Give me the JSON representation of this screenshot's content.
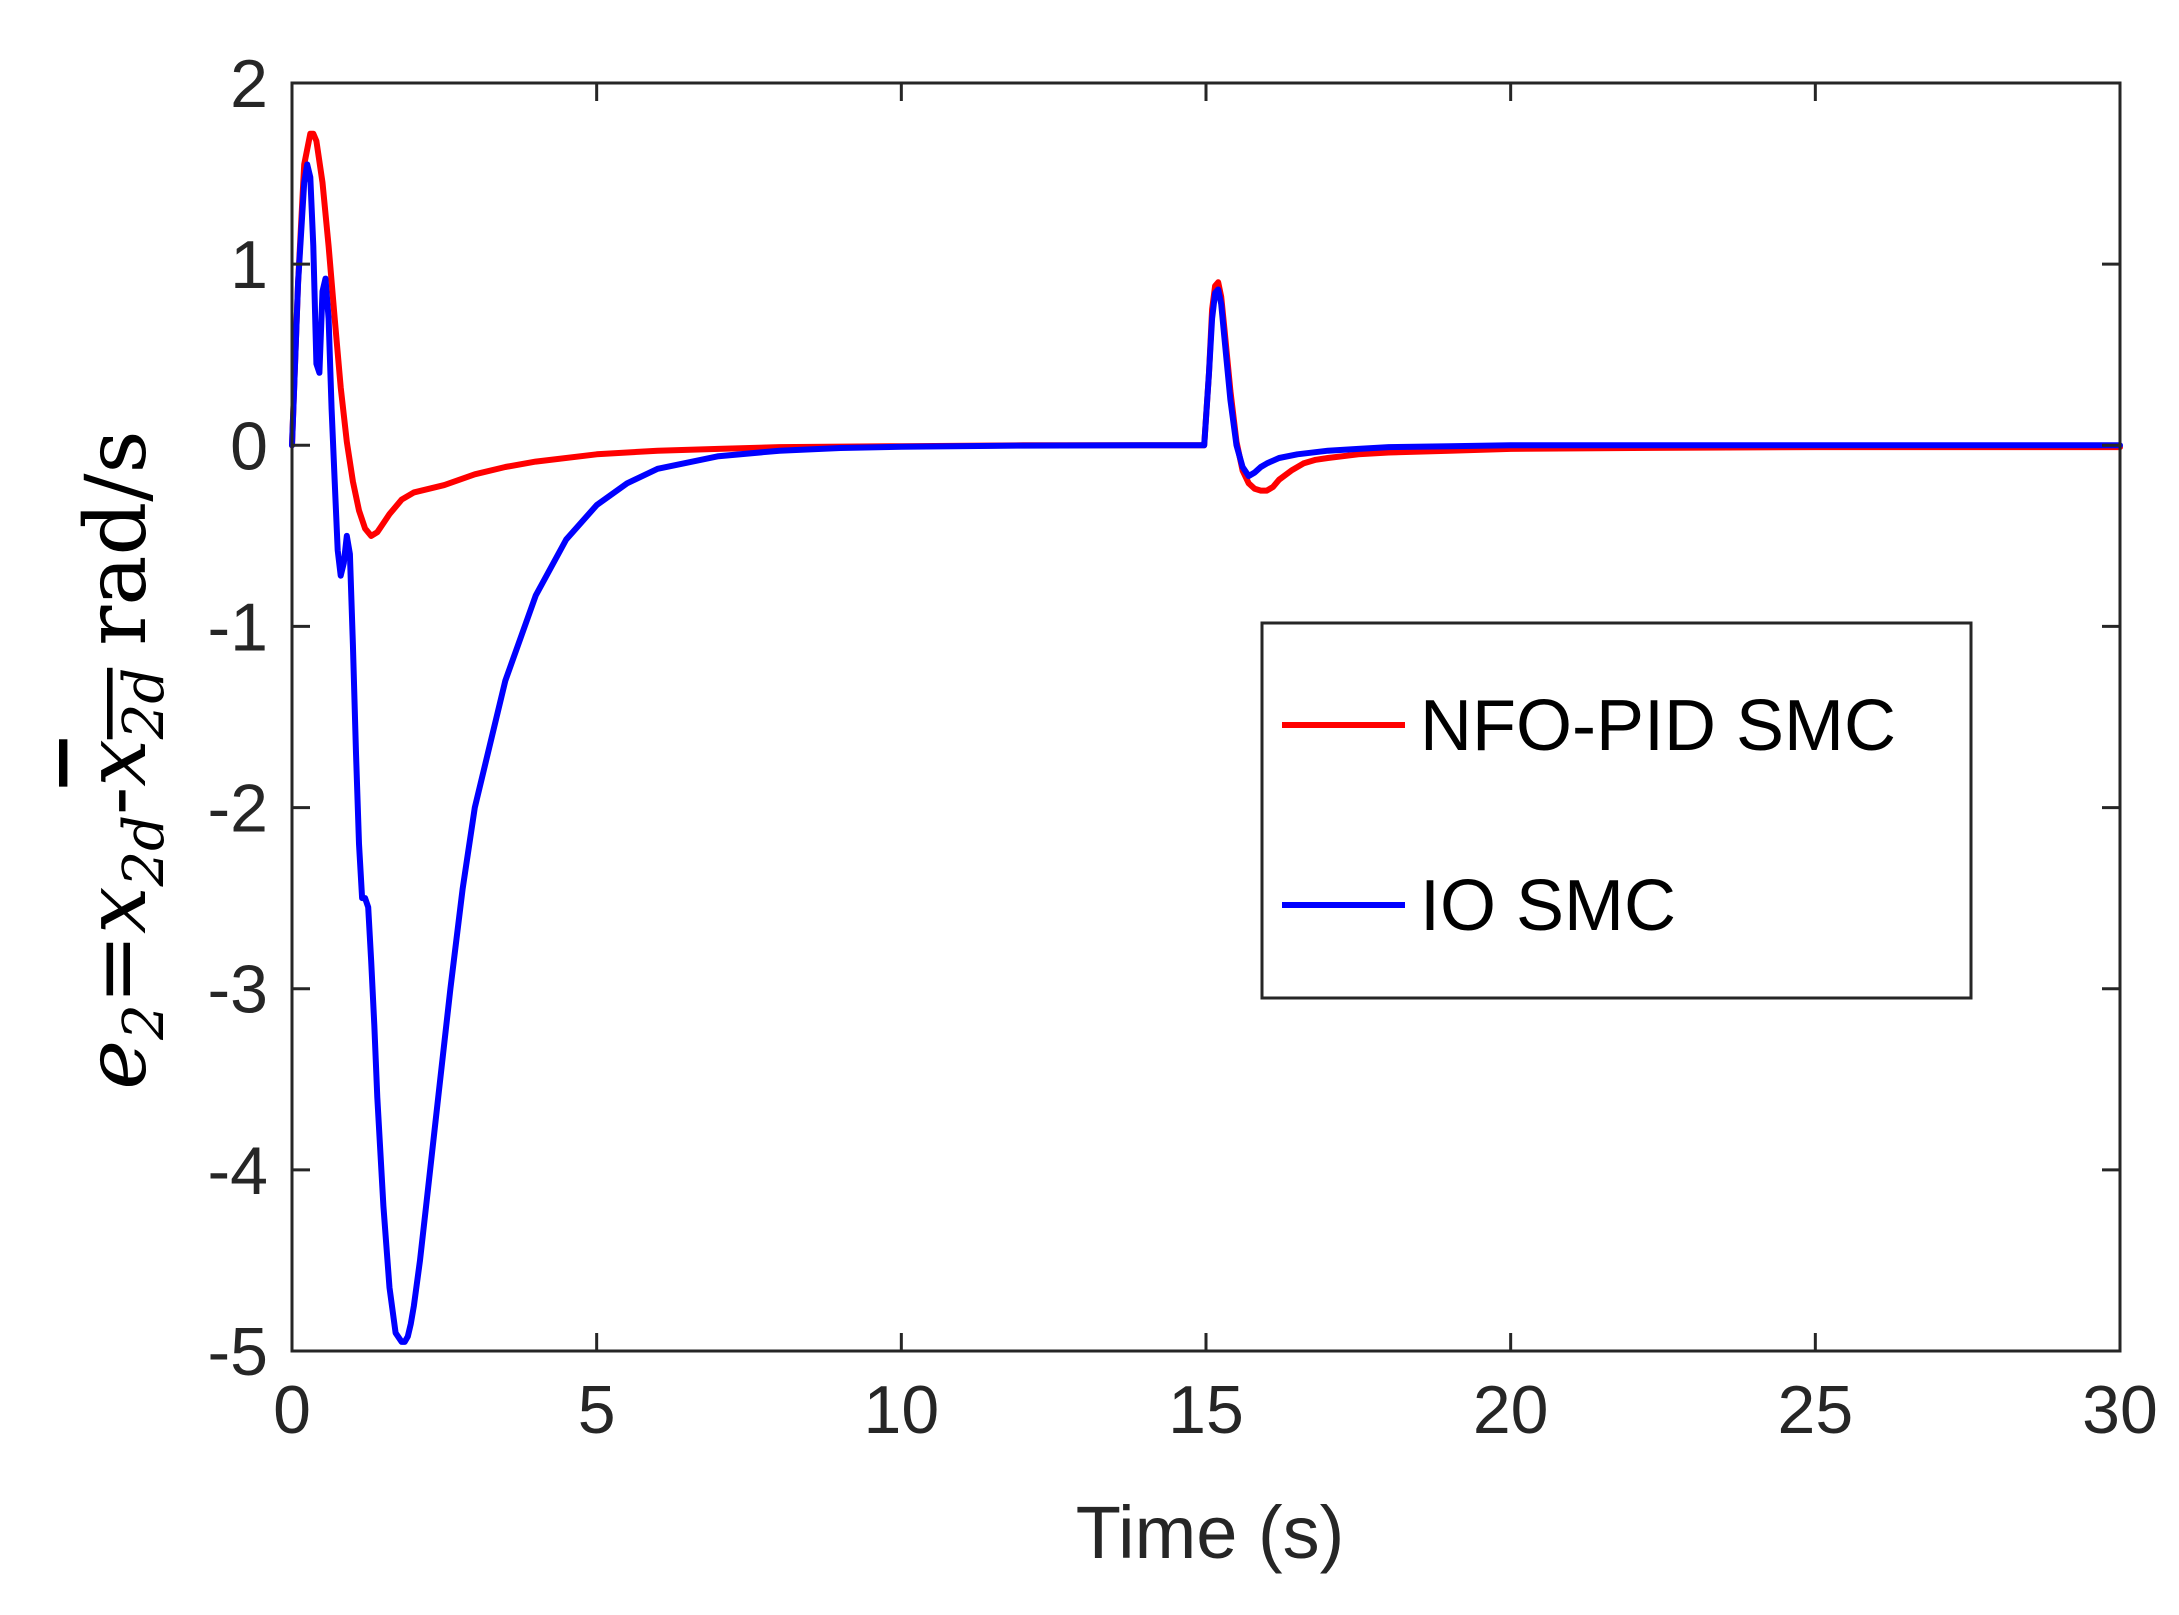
{
  "chart_data": {
    "type": "line",
    "xlabel": "Time (s)",
    "ylabel": {
      "e": "e",
      "e_sub": "2",
      "eq": "=",
      "x": "x",
      "x_sub": "2d",
      "dash": "-",
      "xbar": "x",
      "xbar_sub": "2d",
      "unit": "rad/s"
    },
    "xlim": [
      0,
      30
    ],
    "ylim": [
      -5,
      2
    ],
    "xticks": [
      0,
      5,
      10,
      15,
      20,
      25,
      30
    ],
    "yticks": [
      2,
      1,
      0,
      -1,
      -2,
      -3,
      -4,
      -5
    ],
    "xtick_labels": [
      "0",
      "5",
      "10",
      "15",
      "20",
      "25",
      "30"
    ],
    "ytick_labels": [
      "2",
      "1",
      "0",
      "-1",
      "-2",
      "-3",
      "-4",
      "-5"
    ],
    "grid": false,
    "legend_position": "center-right",
    "series": [
      {
        "name": "NFO-PID SMC",
        "color": "#ff0000",
        "x": [
          0,
          0.1,
          0.2,
          0.3,
          0.35,
          0.4,
          0.5,
          0.6,
          0.7,
          0.8,
          0.9,
          1.0,
          1.1,
          1.2,
          1.3,
          1.4,
          1.6,
          1.8,
          2.0,
          2.5,
          3.0,
          3.5,
          4.0,
          5.0,
          6.0,
          7.0,
          8.0,
          10.0,
          12.0,
          14.0,
          14.97,
          15.05,
          15.1,
          15.15,
          15.2,
          15.25,
          15.3,
          15.4,
          15.5,
          15.6,
          15.7,
          15.8,
          15.9,
          16.0,
          16.1,
          16.2,
          16.4,
          16.6,
          16.8,
          17.0,
          17.5,
          18.0,
          19.0,
          20.0,
          22.0,
          25.0,
          30.0
        ],
        "values": [
          0,
          0.9,
          1.55,
          1.72,
          1.72,
          1.68,
          1.45,
          1.1,
          0.7,
          0.32,
          0.02,
          -0.2,
          -0.36,
          -0.46,
          -0.5,
          -0.48,
          -0.38,
          -0.3,
          -0.26,
          -0.22,
          -0.16,
          -0.12,
          -0.09,
          -0.05,
          -0.03,
          -0.02,
          -0.01,
          -0.005,
          0,
          0,
          0,
          0.4,
          0.75,
          0.88,
          0.9,
          0.82,
          0.65,
          0.3,
          0.02,
          -0.14,
          -0.21,
          -0.24,
          -0.25,
          -0.25,
          -0.23,
          -0.19,
          -0.14,
          -0.1,
          -0.08,
          -0.07,
          -0.05,
          -0.04,
          -0.03,
          -0.02,
          -0.015,
          -0.01,
          -0.01
        ]
      },
      {
        "name": "IO SMC",
        "color": "#0000ff",
        "x": [
          0,
          0.1,
          0.2,
          0.25,
          0.3,
          0.35,
          0.4,
          0.45,
          0.5,
          0.55,
          0.6,
          0.65,
          0.7,
          0.75,
          0.8,
          0.85,
          0.9,
          0.95,
          1.0,
          1.05,
          1.1,
          1.15,
          1.2,
          1.25,
          1.3,
          1.35,
          1.4,
          1.5,
          1.6,
          1.7,
          1.8,
          1.85,
          1.9,
          1.95,
          2.0,
          2.1,
          2.2,
          2.4,
          2.6,
          2.8,
          3.0,
          3.5,
          4.0,
          4.5,
          5.0,
          5.5,
          6.0,
          7.0,
          8.0,
          9.0,
          10.0,
          12.0,
          14.0,
          14.97,
          15.05,
          15.1,
          15.15,
          15.2,
          15.25,
          15.3,
          15.4,
          15.5,
          15.6,
          15.7,
          15.8,
          15.9,
          16.0,
          16.2,
          16.5,
          17.0,
          17.5,
          18.0,
          19.0,
          20.0,
          25.0,
          30.0
        ],
        "values": [
          0,
          0.9,
          1.45,
          1.55,
          1.48,
          1.1,
          0.45,
          0.4,
          0.85,
          0.92,
          0.7,
          0.2,
          -0.2,
          -0.58,
          -0.72,
          -0.65,
          -0.5,
          -0.6,
          -1.1,
          -1.7,
          -2.2,
          -2.5,
          -2.5,
          -2.55,
          -2.85,
          -3.2,
          -3.6,
          -4.2,
          -4.65,
          -4.9,
          -4.95,
          -4.95,
          -4.92,
          -4.85,
          -4.75,
          -4.5,
          -4.2,
          -3.6,
          -3.0,
          -2.45,
          -2.0,
          -1.3,
          -0.83,
          -0.52,
          -0.33,
          -0.21,
          -0.13,
          -0.06,
          -0.03,
          -0.015,
          -0.008,
          -0.002,
          0,
          0,
          0.4,
          0.7,
          0.84,
          0.86,
          0.78,
          0.6,
          0.25,
          0,
          -0.12,
          -0.17,
          -0.15,
          -0.12,
          -0.1,
          -0.07,
          -0.05,
          -0.03,
          -0.02,
          -0.01,
          -0.005,
          0,
          0,
          0
        ]
      }
    ]
  }
}
